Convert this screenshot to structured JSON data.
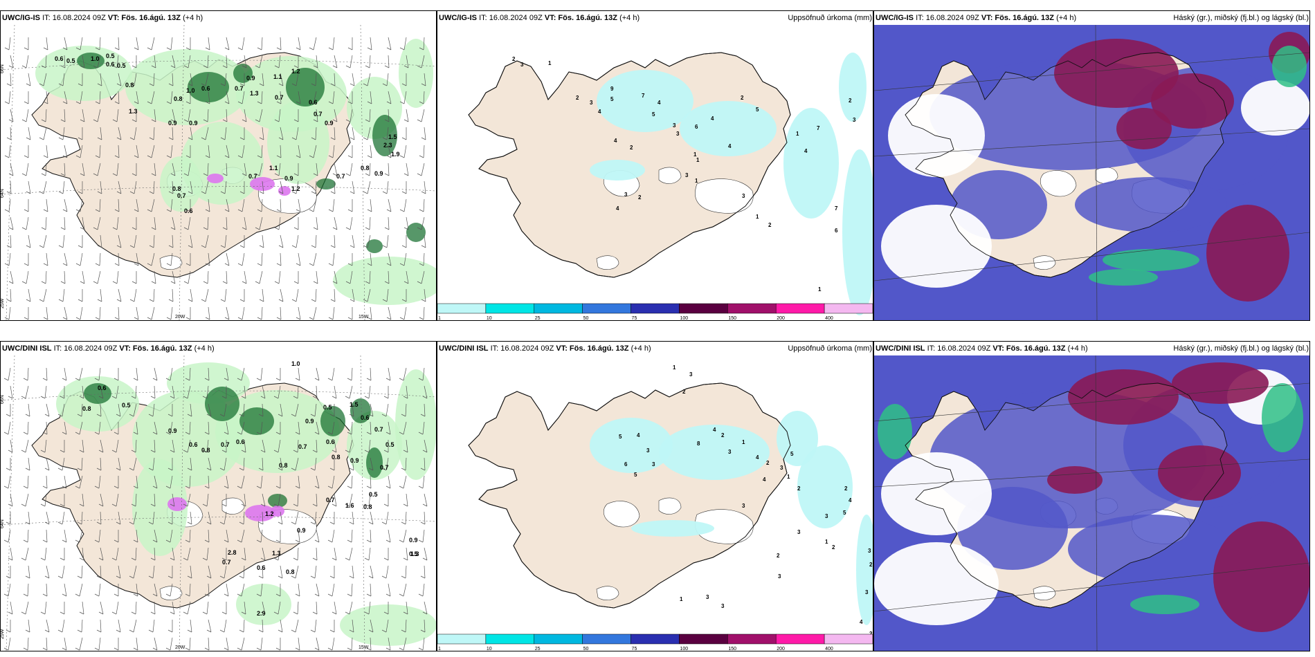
{
  "colors": {
    "land": "#f3e6d8",
    "precip_light": "#c8f5c8",
    "precip_dark": "#0f6b2a",
    "snow": "#dd77ee",
    "accum_light": "#bff7f7",
    "high_cloud": "#8a1a55",
    "mid_cloud": "#5257c9",
    "low_cloud": "#2fbf86"
  },
  "rows": [
    {
      "model": "UWC/IG-IS",
      "it": "IT: 16.08.2024 09Z",
      "vt": "VT: Fös. 16.ágú. 13Z",
      "lead": "(+4 h)",
      "panels": [
        {
          "title": "UWC/IG-IS",
          "right": ""
        },
        {
          "title": "UWC/IG-IS",
          "right": "Uppsöfnuð úrkoma (mm)"
        },
        {
          "title": "UWC/IG-IS",
          "right": "Háský (gr.), miðský (fj.bl.) og lágský (bl.)"
        }
      ]
    },
    {
      "model": "UWC/DINI ISL",
      "it": "IT: 16.08.2024 09Z",
      "vt": "VT: Fös. 16.ágú. 13Z",
      "lead": "(+4 h)",
      "panels": [
        {
          "title": "UWC/DINI ISL",
          "right": ""
        },
        {
          "title": "UWC/DINI ISL",
          "right": "Uppsöfnuð úrkoma (mm)"
        },
        {
          "title": "UWC/DINI ISL",
          "right": "Háský (gr.), miðský (fj.bl.) og lágský (bl.)"
        }
      ]
    }
  ],
  "grid_labels": {
    "lat_66": "66N",
    "lat_64": "64N",
    "lon_25": "25W",
    "lon_20": "20W",
    "lon_15": "15W"
  },
  "colorbar": {
    "ticks": [
      "1",
      "10",
      "25",
      "50",
      "75",
      "100",
      "150",
      "200",
      "400"
    ],
    "colors": [
      "#bff7f7",
      "#00e5e5",
      "#00b8e0",
      "#3377dd",
      "#2a2fb0",
      "#5a0040",
      "#a0106a",
      "#ff1aa8",
      "#f4b8f0"
    ]
  },
  "precip_values_top": [
    "0.6",
    "0.5",
    "1.0",
    "0.6",
    "0.5",
    "0.8",
    "1.3",
    "0.8",
    "0.9",
    "1.0",
    "0.6",
    "0.7",
    "0.9",
    "1.3",
    "1.1",
    "0.7",
    "1.2",
    "0.6",
    "0.7",
    "0.9",
    "1.5",
    "2.3",
    "1.9",
    "0.8",
    "0.9",
    "0.7",
    "0.9",
    "1.2",
    "1.1",
    "0.9",
    "0.8",
    "0.7",
    "0.7",
    "0.5",
    "0.6"
  ],
  "precip_values_bottom": [
    "1.0",
    "0.6",
    "0.8",
    "0.5",
    "0.9",
    "0.6",
    "0.8",
    "0.7",
    "0.6",
    "0.9",
    "0.5",
    "1.5",
    "0.6",
    "0.7",
    "0.5",
    "0.7",
    "0.9",
    "0.8",
    "0.6",
    "0.7",
    "0.8",
    "0.7",
    "1.6",
    "1.2",
    "0.9",
    "0.6",
    "2.8",
    "1.3",
    "0.8",
    "2.9",
    "0.7",
    "0.5",
    "0.8",
    "0.9",
    "1.3",
    "0.5"
  ],
  "accum_values_top": [
    "2",
    "3",
    "1",
    "2",
    "3",
    "4",
    "5",
    "9",
    "7",
    "4",
    "5",
    "3",
    "2",
    "4",
    "6",
    "3",
    "4",
    "1",
    "2",
    "4",
    "5",
    "1",
    "1",
    "3",
    "4",
    "2",
    "3",
    "1",
    "2",
    "3",
    "1",
    "4",
    "7",
    "7",
    "6",
    "1",
    "2",
    "3"
  ],
  "accum_values_bottom": [
    "1",
    "3",
    "2",
    "5",
    "4",
    "3",
    "6",
    "5",
    "3",
    "8",
    "4",
    "2",
    "3",
    "1",
    "4",
    "2",
    "3",
    "5",
    "1",
    "4",
    "3",
    "2",
    "3",
    "1",
    "2",
    "4",
    "5",
    "3",
    "2",
    "1",
    "3",
    "2",
    "3",
    "3",
    "3",
    "2",
    "3",
    "4",
    "2"
  ]
}
